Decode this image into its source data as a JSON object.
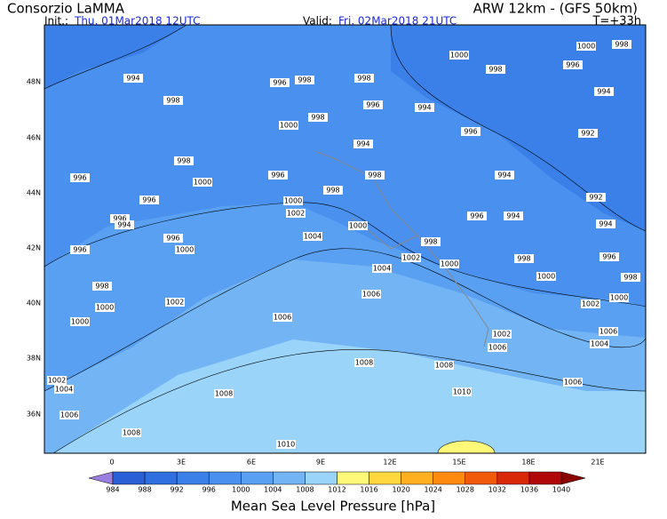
{
  "header": {
    "title": "Consorzio LaMMA",
    "model": "ARW 12km - (GFS 50km)",
    "init_label": "Init.:",
    "init_time": "Thu, 01Mar2018 12UTC",
    "valid_label": "Valid:",
    "valid_time": "Fri, 02Mar2018 21UTC",
    "lead": "T=+33h"
  },
  "map": {
    "lat_labels": [
      "48N",
      "46N",
      "44N",
      "42N",
      "40N",
      "38N",
      "36N"
    ],
    "lon_labels": [
      "0",
      "3E",
      "6E",
      "9E",
      "12E",
      "15E",
      "18E",
      "21E"
    ],
    "isobar_labels": [
      994,
      998,
      996,
      998,
      998,
      1000,
      1000,
      998,
      998,
      996,
      994,
      996,
      994,
      998,
      1000,
      996,
      992,
      998,
      994,
      1000,
      996,
      998,
      998,
      994,
      996,
      996,
      992,
      1000,
      1002,
      996,
      994,
      996,
      994,
      996,
      1000,
      1004,
      1000,
      998,
      994,
      996,
      1002,
      998,
      996,
      1004,
      1000,
      998,
      1000,
      998,
      1006,
      1000,
      1002,
      1002,
      1000,
      1000,
      1006,
      1002,
      1006,
      1006,
      1004,
      1008,
      1008,
      1002,
      1004,
      1006,
      1010,
      1008,
      1006,
      1008,
      1010
    ]
  },
  "colorbar": {
    "title": "Mean Sea Level Pressure [hPa]",
    "levels": [
      984,
      988,
      992,
      996,
      1000,
      1004,
      1008,
      1012,
      1016,
      1020,
      1024,
      1028,
      1032,
      1036,
      1040
    ],
    "colors": [
      "#9b7fe0",
      "#2a5fd6",
      "#2f6fe0",
      "#3a80e8",
      "#4a90ee",
      "#5aa0f2",
      "#72b4f4",
      "#9ad4f8",
      "#fff878",
      "#ffd840",
      "#ffb020",
      "#ff8a10",
      "#f05a0a",
      "#d82808",
      "#b00808",
      "#8a0000"
    ]
  }
}
